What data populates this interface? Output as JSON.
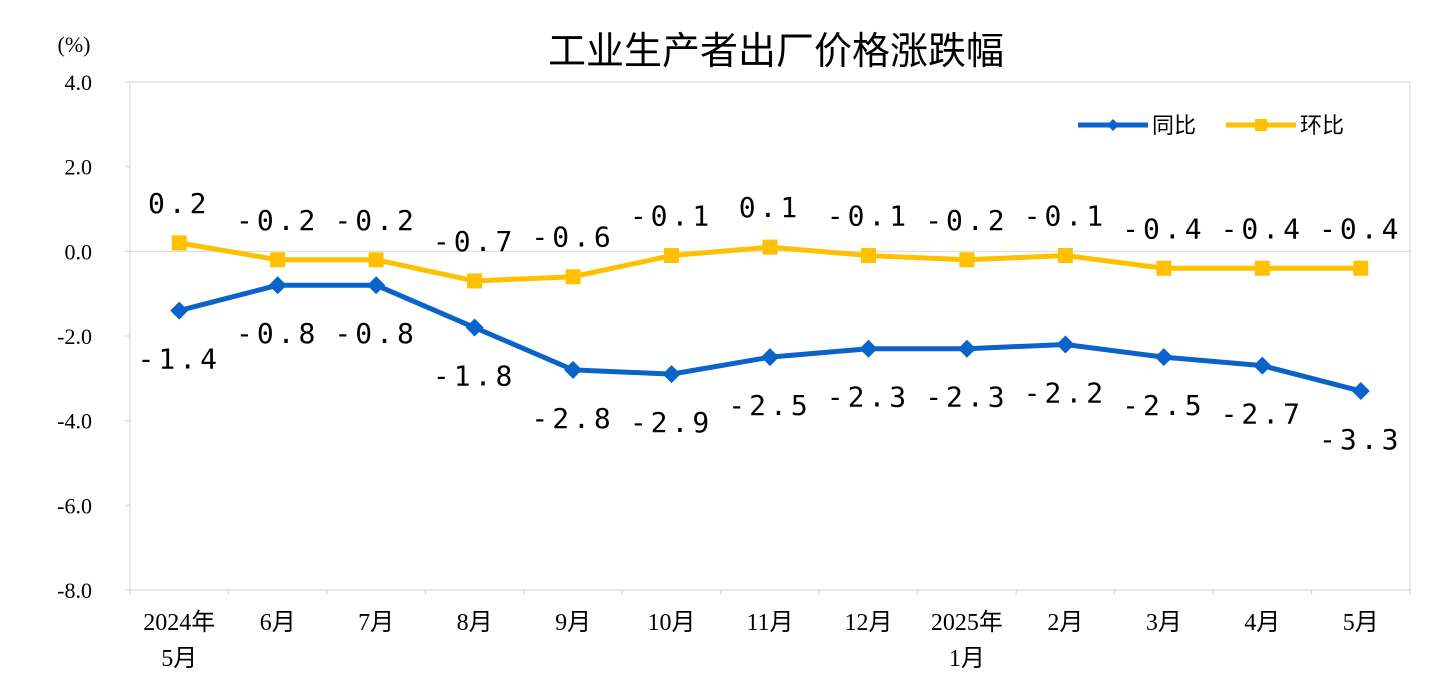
{
  "chart_data": {
    "type": "line",
    "title": "工业生产者出厂价格涨跌幅",
    "ylabel": "(%)",
    "xlabel": "",
    "ylim": [
      -8.0,
      4.0
    ],
    "y_ticks": [
      4.0,
      2.0,
      0.0,
      -2.0,
      -4.0,
      -6.0,
      -8.0
    ],
    "y_tick_labels": [
      "4.0",
      "2.0",
      "0.0",
      "-2.0",
      "-4.0",
      "-6.0",
      "-8.0"
    ],
    "categories": [
      [
        "2024年",
        "5月"
      ],
      [
        "6月"
      ],
      [
        "7月"
      ],
      [
        "8月"
      ],
      [
        "9月"
      ],
      [
        "10月"
      ],
      [
        "11月"
      ],
      [
        "12月"
      ],
      [
        "2025年",
        "1月"
      ],
      [
        "2月"
      ],
      [
        "3月"
      ],
      [
        "4月"
      ],
      [
        "5月"
      ]
    ],
    "grid": "horizontal at 0 only",
    "legend_position": "top-right",
    "series": [
      {
        "name": "同比",
        "color": "#0a63c9",
        "marker": "diamond",
        "values": [
          -1.4,
          -0.8,
          -0.8,
          -1.8,
          -2.8,
          -2.9,
          -2.5,
          -2.3,
          -2.3,
          -2.2,
          -2.5,
          -2.7,
          -3.3
        ],
        "labels": [
          "-1.4",
          "-0.8",
          "-0.8",
          "-1.8",
          "-2.8",
          "-2.9",
          "-2.5",
          "-2.3",
          "-2.3",
          "-2.2",
          "-2.5",
          "-2.7",
          "-3.3"
        ],
        "label_position": "below"
      },
      {
        "name": "环比",
        "color": "#ffc000",
        "marker": "square",
        "values": [
          0.2,
          -0.2,
          -0.2,
          -0.7,
          -0.6,
          -0.1,
          0.1,
          -0.1,
          -0.2,
          -0.1,
          -0.4,
          -0.4,
          -0.4
        ],
        "labels": [
          "0.2",
          "-0.2",
          "-0.2",
          "-0.7",
          "-0.6",
          "-0.1",
          "0.1",
          "-0.1",
          "-0.2",
          "-0.1",
          "-0.4",
          "-0.4",
          "-0.4"
        ],
        "label_position": "above"
      }
    ]
  }
}
